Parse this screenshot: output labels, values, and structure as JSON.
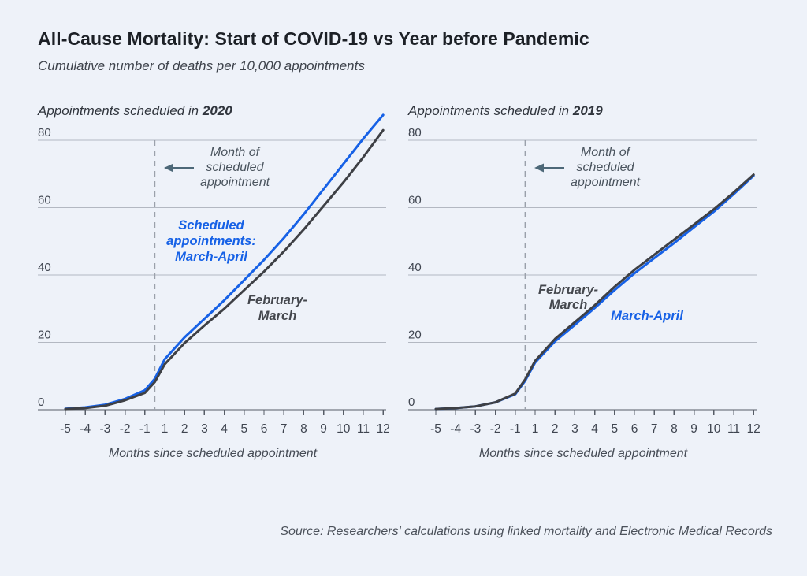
{
  "header": {
    "title": "All-Cause Mortality: Start of COVID-19 vs Year before Pandemic",
    "subtitle": "Cumulative number of deaths per 10,000 appointments"
  },
  "footer": {
    "source": "Source: Researchers' calculations using linked mortality and Electronic Medical Records"
  },
  "colors": {
    "background": "#eef2f9",
    "accent_blue": "#1661e6",
    "series_dark": "#3e4045",
    "gridline": "#b3b8c2",
    "axis": "#565c66",
    "dashed_event_line": "#9ba1ab",
    "arrow": "#4d6878"
  },
  "chart_data": [
    {
      "type": "line",
      "title_prefix": "Appointments scheduled in",
      "title_year": "2020",
      "xlabel": "Months since scheduled appointment",
      "annotation_lines": [
        "Month of",
        "scheduled",
        "appointment"
      ],
      "annotation_target": "dashed line at month 0",
      "x": [
        -5,
        -4,
        -3,
        -2,
        -1,
        0,
        1,
        2,
        3,
        4,
        5,
        6,
        7,
        8,
        9,
        10,
        11,
        12
      ],
      "xticks": [
        -5,
        -4,
        -3,
        -2,
        -1,
        1,
        2,
        3,
        4,
        5,
        6,
        7,
        8,
        9,
        10,
        11,
        12
      ],
      "yticks": [
        0,
        20,
        40,
        60,
        80
      ],
      "ylim": [
        0,
        88
      ],
      "event_line_x": 0,
      "grid": true,
      "legend_position": "inline-labels",
      "series": [
        {
          "name": "Scheduled appointments: March-April",
          "label_lines": [
            "Scheduled",
            "appointments:",
            "March-April"
          ],
          "color": "#1661e6",
          "values": [
            0.3,
            0.7,
            1.5,
            3.2,
            5.8,
            9.2,
            15,
            21.5,
            27,
            32.5,
            38.5,
            44.5,
            51,
            58,
            65.5,
            73,
            80.5,
            87.5
          ]
        },
        {
          "name": "February-March",
          "label_lines": [
            "February-",
            "March"
          ],
          "color": "#3e4045",
          "values": [
            0.2,
            0.5,
            1.2,
            2.8,
            5,
            8.2,
            13.5,
            19.8,
            25,
            30,
            35.5,
            41,
            47,
            53.5,
            60.5,
            67.5,
            75,
            83
          ]
        }
      ]
    },
    {
      "type": "line",
      "title_prefix": "Appointments scheduled in",
      "title_year": "2019",
      "xlabel": "Months since scheduled appointment",
      "annotation_lines": [
        "Month of",
        "scheduled",
        "appointment"
      ],
      "annotation_target": "dashed line at month 0",
      "x": [
        -5,
        -4,
        -3,
        -2,
        -1,
        0,
        1,
        2,
        3,
        4,
        5,
        6,
        7,
        8,
        9,
        10,
        11,
        12
      ],
      "xticks": [
        -5,
        -4,
        -3,
        -2,
        -1,
        1,
        2,
        3,
        4,
        5,
        6,
        7,
        8,
        9,
        10,
        11,
        12
      ],
      "yticks": [
        0,
        20,
        40,
        60,
        80
      ],
      "ylim": [
        0,
        88
      ],
      "event_line_x": 0,
      "grid": true,
      "legend_position": "inline-labels",
      "series": [
        {
          "name": "March-April",
          "label_lines": [
            "March-April"
          ],
          "color": "#1661e6",
          "values": [
            0.2,
            0.5,
            1,
            2.2,
            4.6,
            8.6,
            14,
            20.3,
            25.2,
            30.2,
            35.5,
            40.5,
            45,
            49.5,
            54.2,
            58.8,
            64,
            69.5
          ]
        },
        {
          "name": "February-March",
          "label_lines": [
            "February-",
            "March"
          ],
          "color": "#3e4045",
          "values": [
            0.2,
            0.5,
            1,
            2.2,
            4.8,
            9,
            14.5,
            21,
            26,
            31,
            36.5,
            41.5,
            46,
            50.5,
            55,
            59.5,
            64.5,
            69.8
          ]
        }
      ]
    }
  ]
}
